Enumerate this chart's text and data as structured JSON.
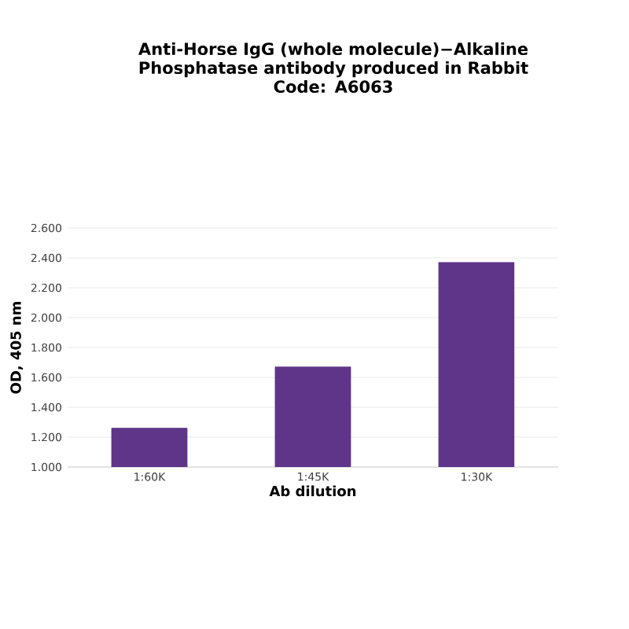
{
  "chart_data": {
    "type": "bar",
    "title": "Anti-Horse IgG (whole molecule)−Alkaline Phosphatase antibody produced in Rabbit",
    "subtitle": "Code: A6063",
    "xlabel": "Ab dilution",
    "ylabel": "OD, 405 nm",
    "categories": [
      "1:60K",
      "1:45K",
      "1:30K"
    ],
    "values": [
      1.26,
      1.67,
      2.37
    ],
    "color": "#5f3589",
    "ylim": [
      1,
      2.6
    ],
    "yticks": [
      {
        "value": 1,
        "label": "1.000"
      },
      {
        "value": 1.2,
        "label": "1.200"
      },
      {
        "value": 1.4,
        "label": "1.400"
      },
      {
        "value": 1.6,
        "label": "1.600"
      },
      {
        "value": 1.8,
        "label": "1.800"
      },
      {
        "value": 2,
        "label": "2.000"
      },
      {
        "value": 2.2,
        "label": "2.200"
      },
      {
        "value": 2.4,
        "label": "2.400"
      },
      {
        "value": 2.6,
        "label": "2.600"
      }
    ],
    "grid": "y"
  }
}
